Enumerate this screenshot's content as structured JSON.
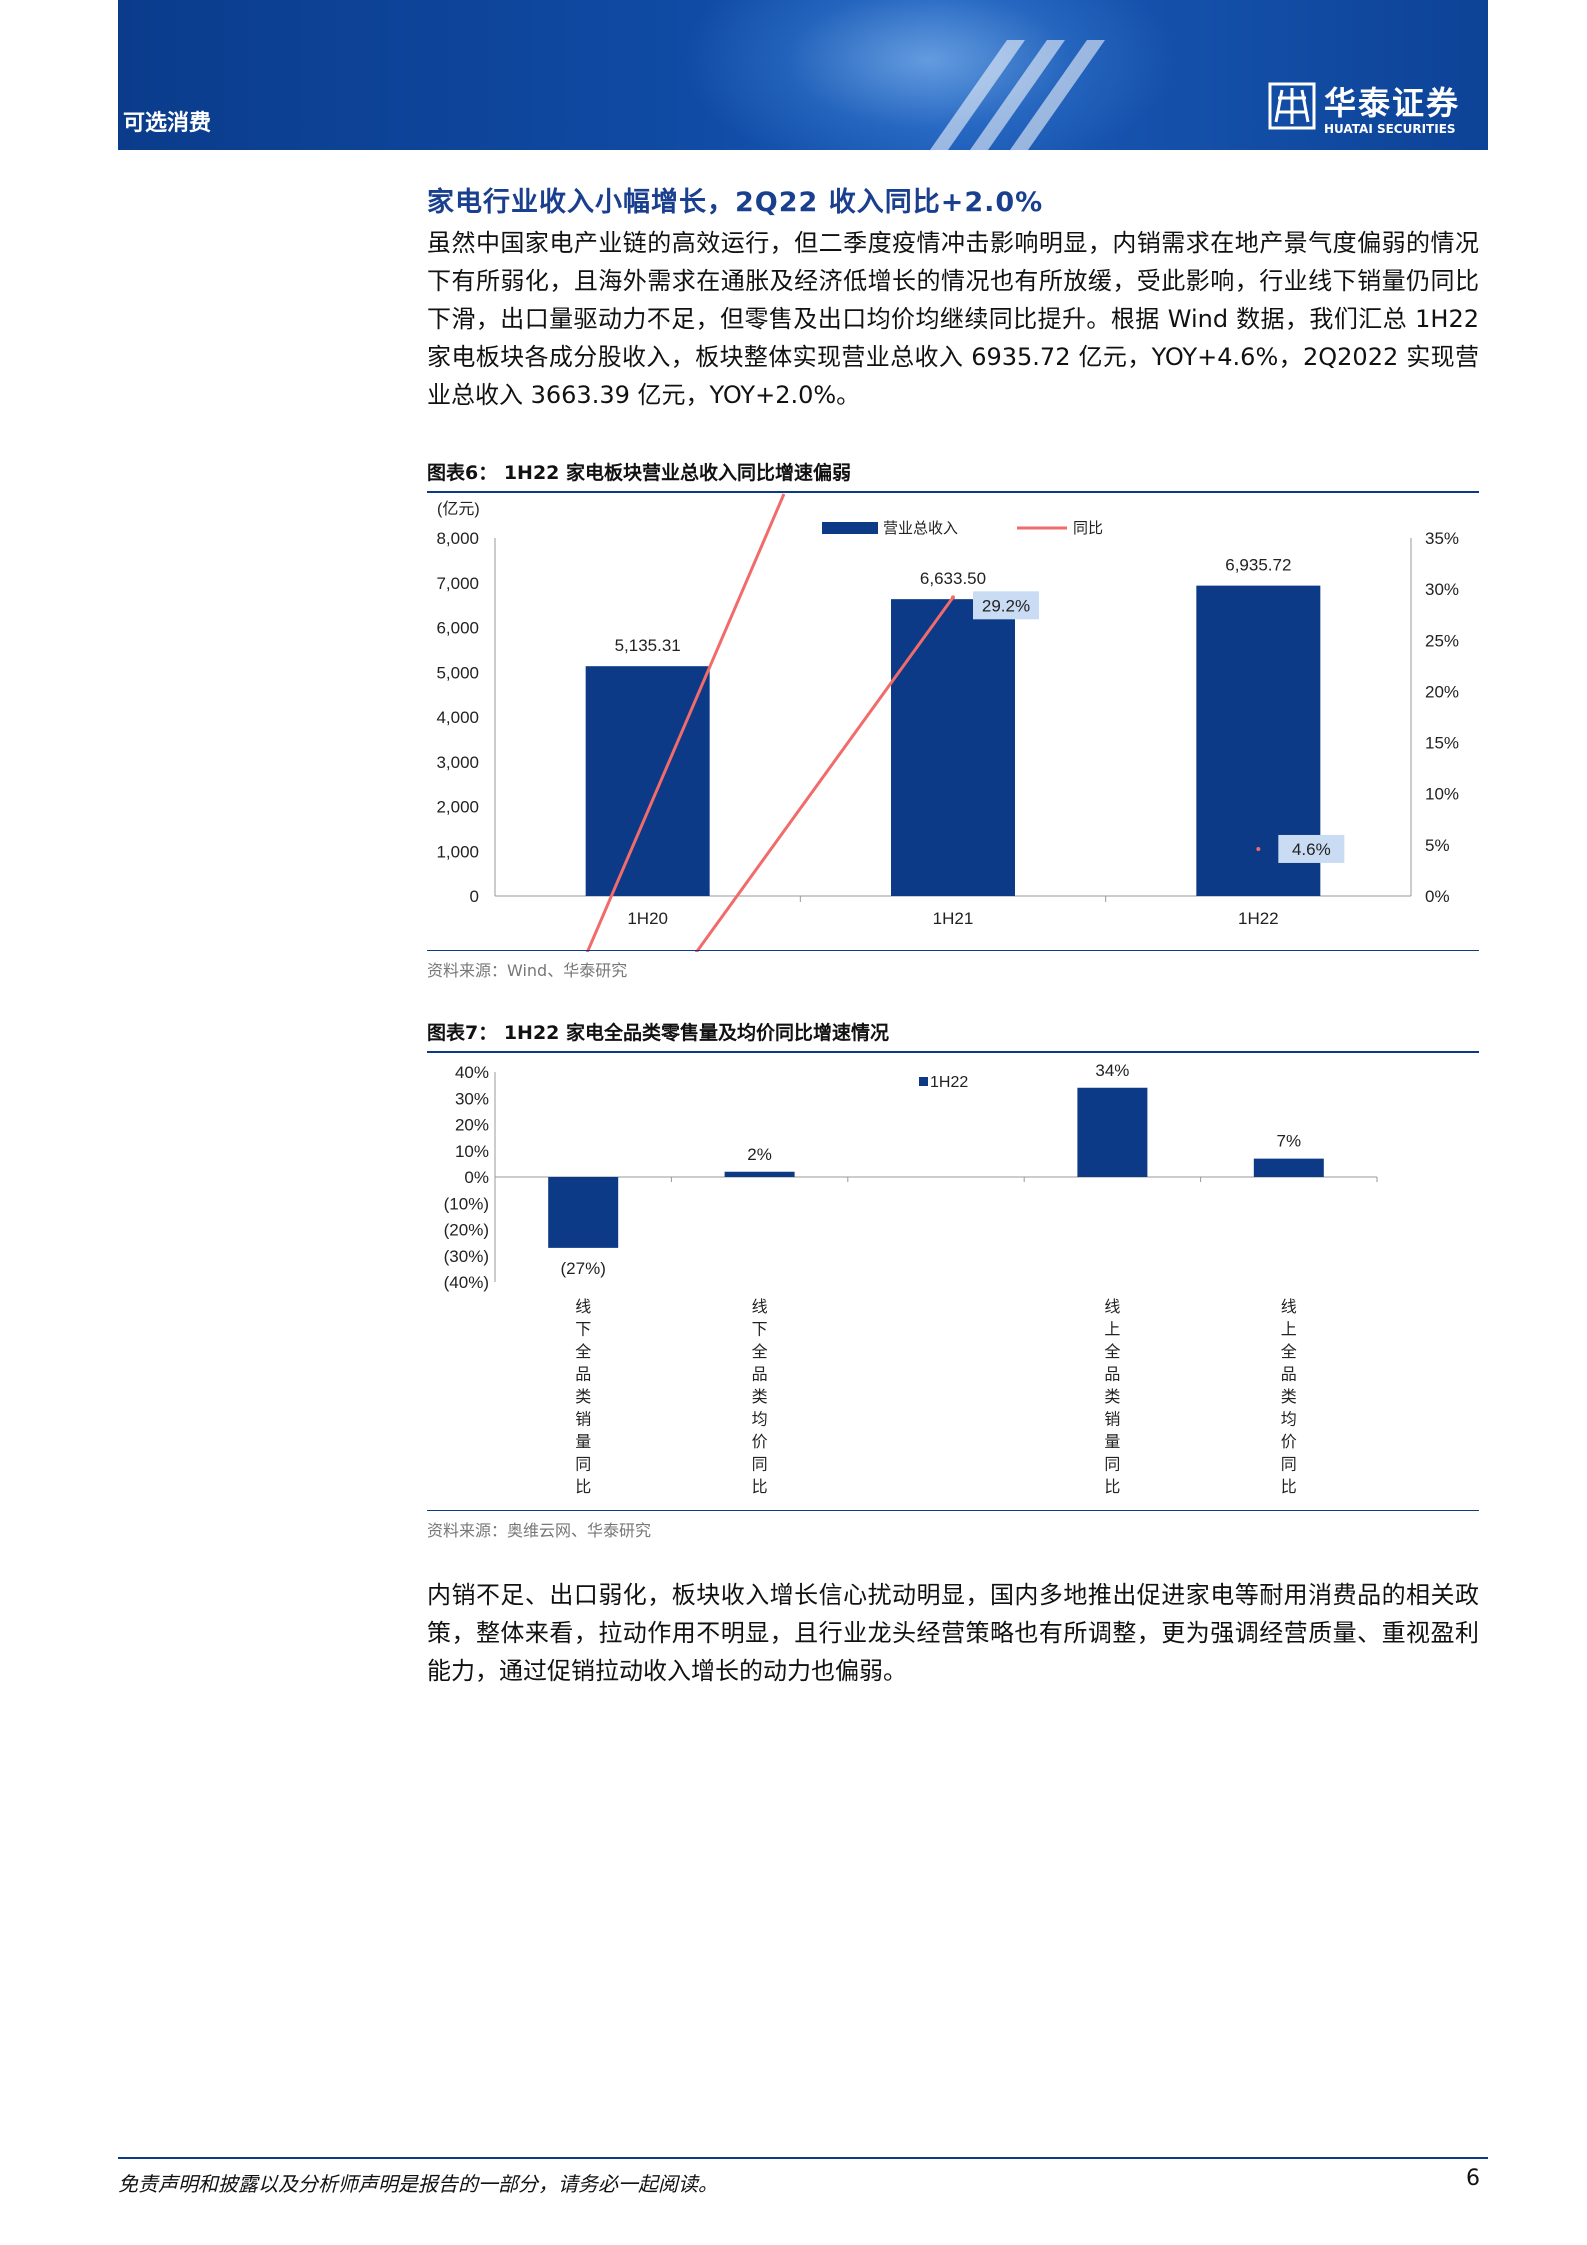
{
  "header": {
    "sector": "可选消费",
    "logo_cn": "华泰证券",
    "logo_en": "HUATAI SECURITIES"
  },
  "section_title": "家电行业收入小幅增长，2Q22 收入同比+2.0%",
  "paragraph1": "虽然中国家电产业链的高效运行，但二季度疫情冲击影响明显，内销需求在地产景气度偏弱的情况下有所弱化，且海外需求在通胀及经济低增长的情况也有所放缓，受此影响，行业线下销量仍同比下滑，出口量驱动力不足，但零售及出口均价均继续同比提升。根据 Wind 数据，我们汇总 1H22 家电板块各成分股收入，板块整体实现营业总收入 6935.72 亿元，YOY+4.6%，2Q2022 实现营业总收入 3663.39 亿元，YOY+2.0%。",
  "paragraph2": "内销不足、出口弱化，板块收入增长信心扰动明显，国内多地推出促进家电等耐用消费品的相关政策，整体来看，拉动作用不明显，且行业龙头经营策略也有所调整，更为强调经营质量、重视盈利能力，通过促销拉动收入增长的动力也偏弱。",
  "figure6": {
    "title": "图表6：  1H22 家电板块营业总收入同比增速偏弱",
    "source": "资料来源：Wind、华泰研究"
  },
  "figure7": {
    "title": "图表7：  1H22 家电全品类零售量及均价同比增速情况",
    "source": "资料来源：奥维云网、华泰研究"
  },
  "chart_data": [
    {
      "type": "bar",
      "categories": [
        "1H20",
        "1H21",
        "1H22"
      ],
      "series": [
        {
          "name": "营业总收入",
          "values": [
            5135.31,
            6633.5,
            6935.72
          ],
          "value_labels": [
            "5,135.31",
            "6,633.50",
            "6,935.72"
          ],
          "color": "#0d3a86"
        },
        {
          "name": "同比",
          "type": "line",
          "axis": "right",
          "values": [
            null,
            29.2,
            4.6
          ],
          "value_labels": [
            "",
            "29.2%",
            "4.6%"
          ],
          "color": "#f26b6b"
        }
      ],
      "yunit": "(亿元)",
      "ylim": [
        0,
        8000
      ],
      "yticks": [
        "8,000",
        "7,000",
        "6,000",
        "5,000",
        "4,000",
        "3,000",
        "2,000",
        "1,000",
        "0"
      ],
      "y2lim": [
        0,
        35
      ],
      "y2ticks": [
        "35%",
        "30%",
        "25%",
        "20%",
        "15%",
        "10%",
        "5%",
        "0%"
      ],
      "legend": "top",
      "grid": false
    },
    {
      "type": "bar",
      "categories": [
        "线下全品类销量同比",
        "线下全品类均价同比",
        "",
        "线上全品类销量同比",
        "线上全品类均价同比"
      ],
      "series": [
        {
          "name": "1H22",
          "values": [
            -27,
            2,
            null,
            34,
            7
          ],
          "value_labels": [
            "(27%)",
            "2%",
            "",
            "34%",
            "7%"
          ],
          "color": "#0d3a86"
        }
      ],
      "ylim": [
        -40,
        40
      ],
      "yticks": [
        "40%",
        "30%",
        "20%",
        "10%",
        "0%",
        "(10%)",
        "(20%)",
        "(30%)",
        "(40%)"
      ],
      "legend": "top-center",
      "grid": false
    }
  ],
  "footer": {
    "disclaimer": "免责声明和披露以及分析师声明是报告的一部分，请务必一起阅读。",
    "page": "6"
  }
}
